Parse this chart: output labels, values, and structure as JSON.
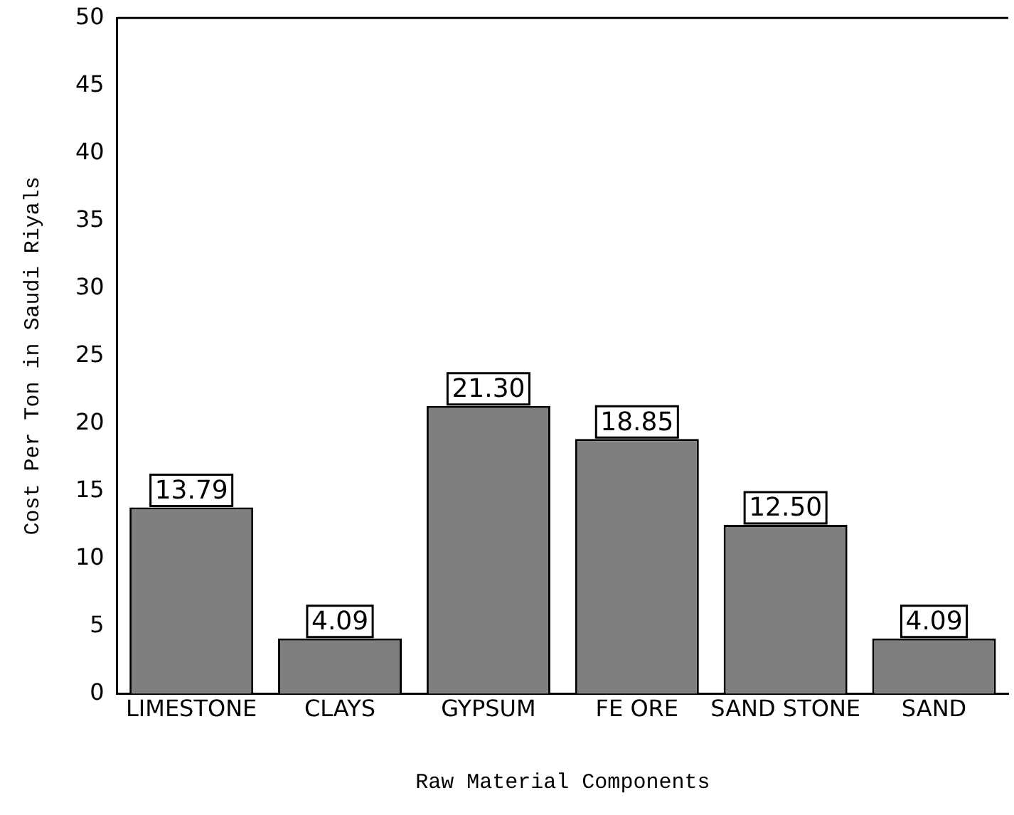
{
  "chart_data": {
    "type": "bar",
    "xlabel": "Raw Material Components",
    "ylabel": "Cost Per Ton in Saudi Riyals",
    "categories": [
      "LIMESTONE",
      "CLAYS",
      "GYPSUM",
      "FE ORE",
      "SAND STONE",
      "SAND"
    ],
    "values": [
      13.79,
      4.09,
      21.3,
      18.85,
      12.5,
      4.09
    ],
    "value_labels": [
      "13.79",
      "4.09",
      "21.30",
      "18.85",
      "12.50",
      "4.09"
    ],
    "color": "#7f7f7f",
    "ylim": [
      0,
      50
    ],
    "yticks": [
      0,
      5,
      10,
      15,
      20,
      25,
      30,
      35,
      40,
      45,
      50
    ],
    "grid": false,
    "legend": false
  }
}
